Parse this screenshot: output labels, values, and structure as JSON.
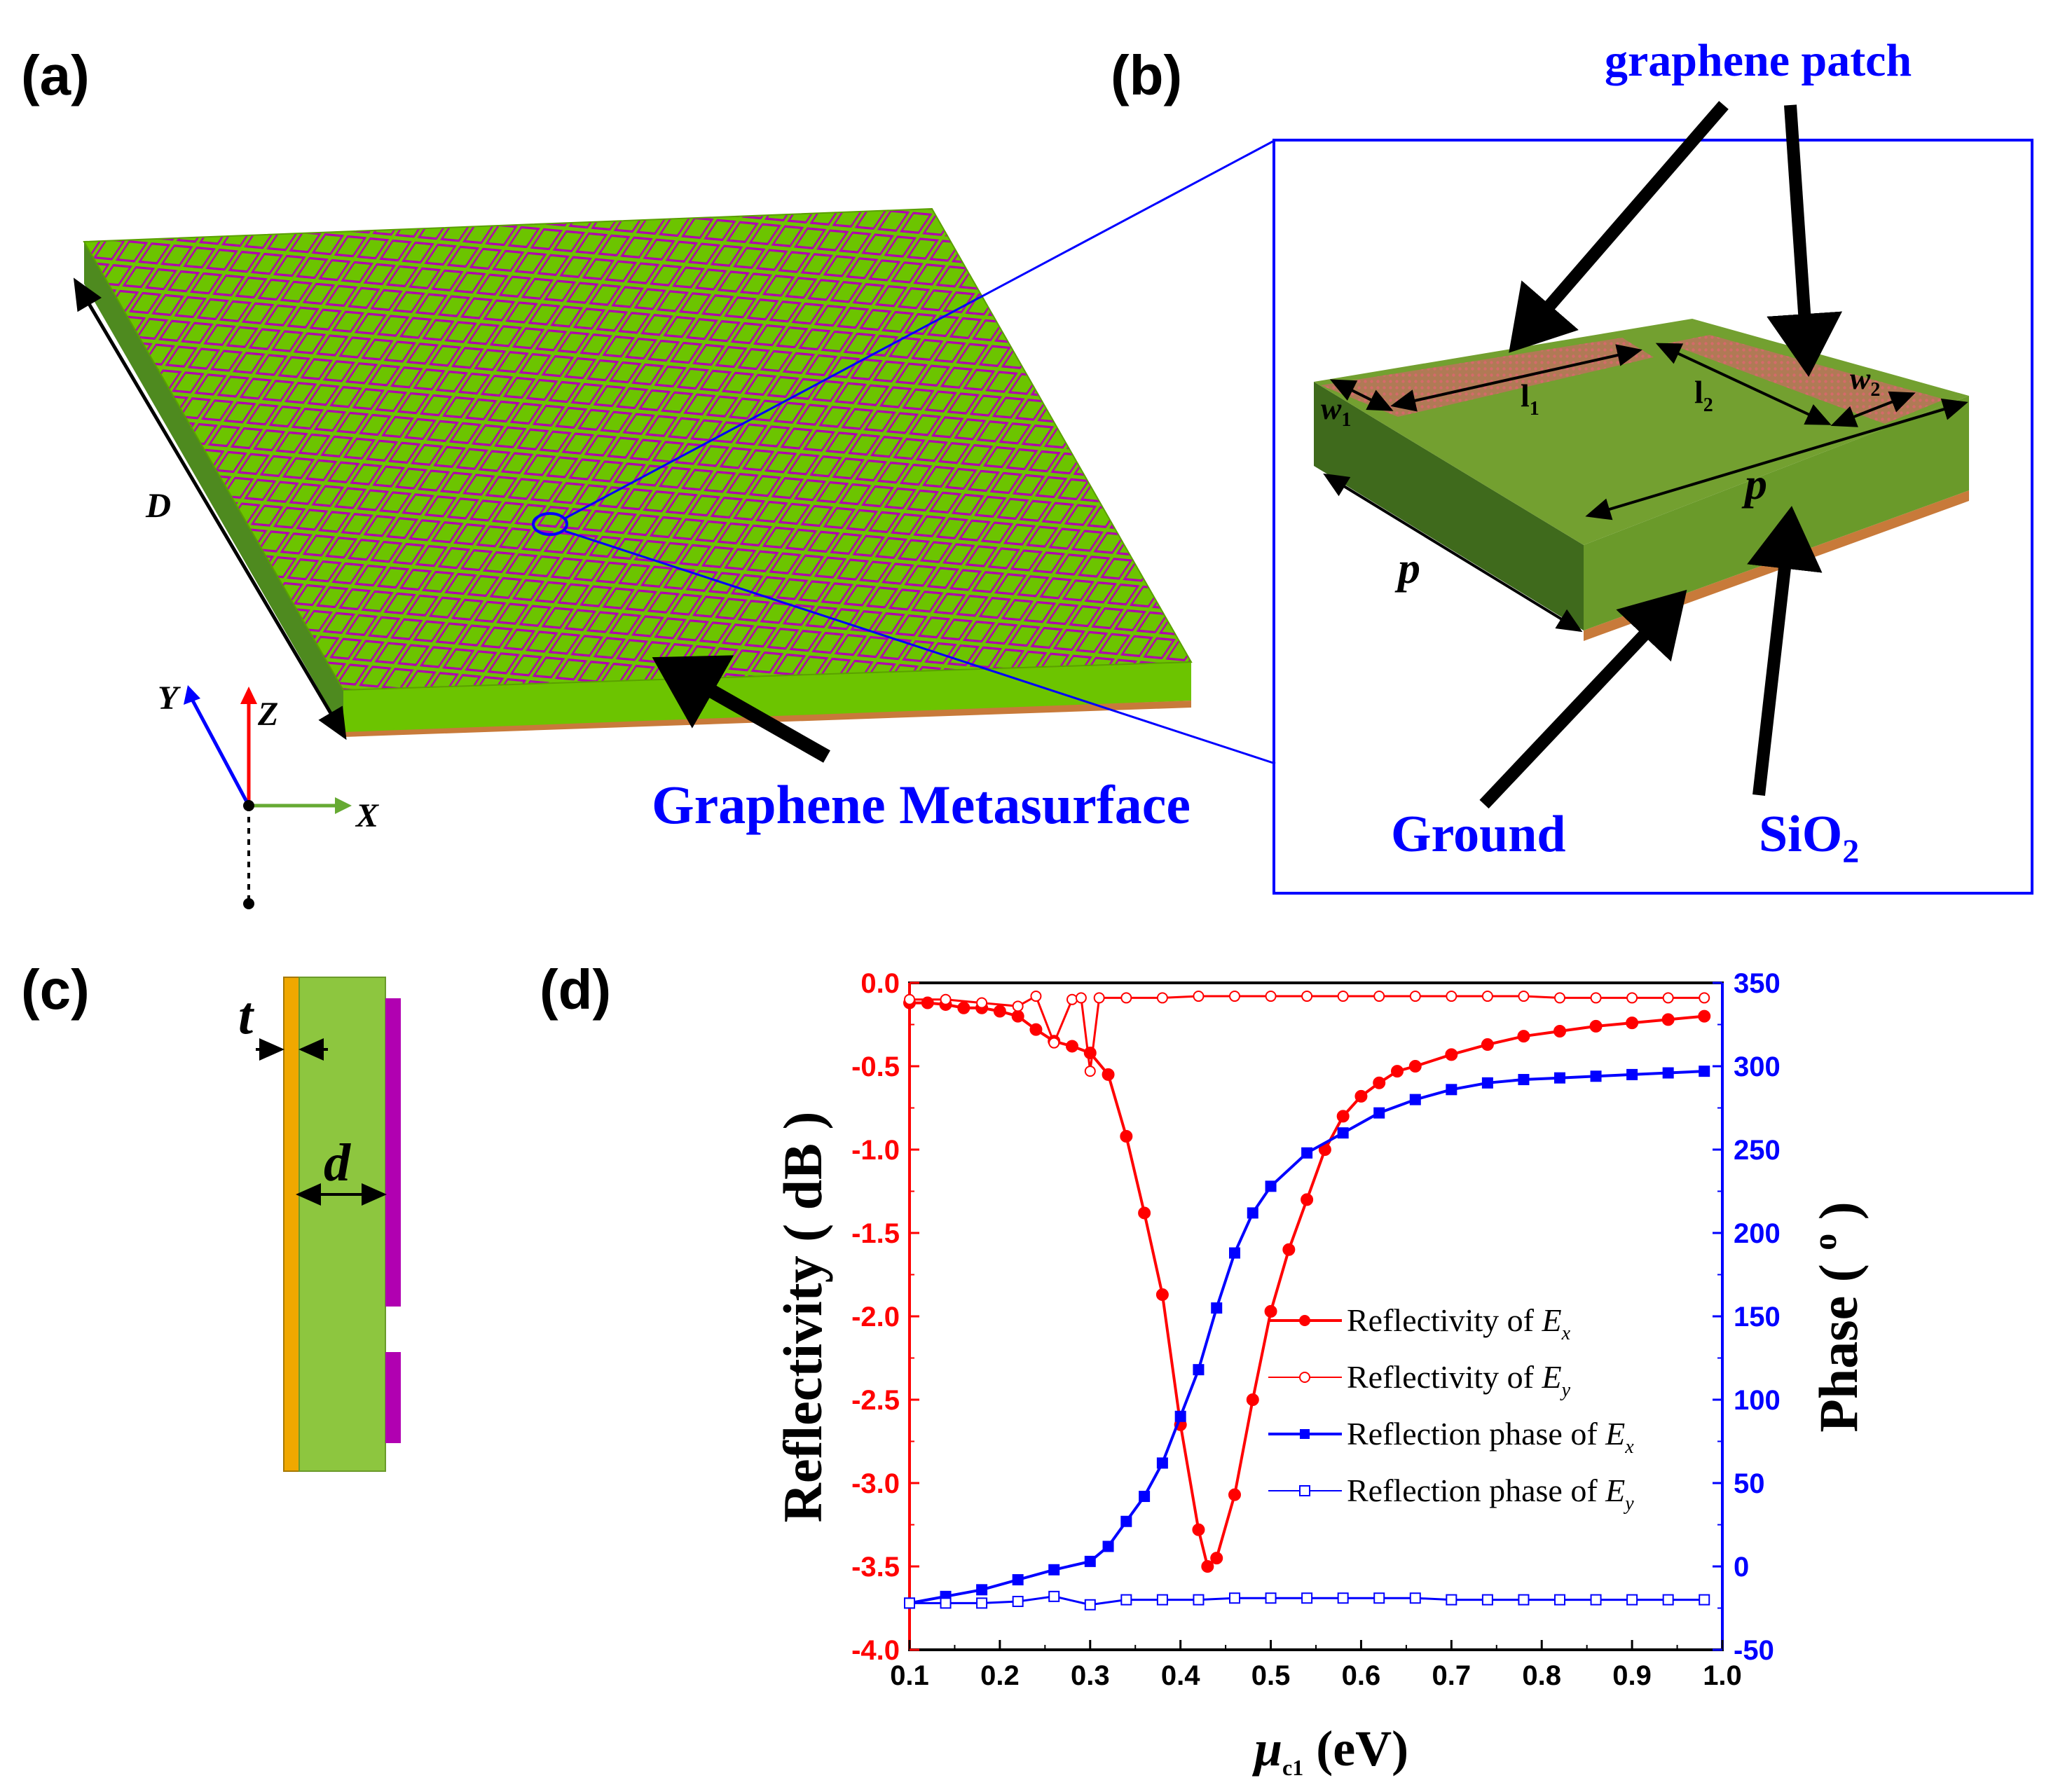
{
  "panels": {
    "a": {
      "label": "(a)",
      "metasurface_label": "Graphene Metasurface",
      "dim_D": "D",
      "axes": {
        "x": "X",
        "y": "Y",
        "z": "Z"
      }
    },
    "b": {
      "label": "(b)",
      "graphene_patch": "graphene patch",
      "ground": "Ground",
      "substrate": "SiO",
      "substrate_sub": "2",
      "dims": {
        "l1": "l",
        "l1_sub": "1",
        "l2": "l",
        "l2_sub": "2",
        "w1": "w",
        "w1_sub": "1",
        "w2": "w",
        "w2_sub": "2",
        "p": "p"
      }
    },
    "c": {
      "label": "(c)",
      "t": "t",
      "d": "d"
    },
    "d": {
      "label": "(d)"
    }
  },
  "colors": {
    "substrate_green": "#6cc400",
    "substrate_dark": "#4e8a1f",
    "ground_copper": "#c87a3a",
    "patch_magenta": "#b100b1",
    "annotation_blue": "#0000ff",
    "reflectivity_red": "#ff0000",
    "phase_blue": "#0000ff"
  },
  "chart_data": {
    "type": "line",
    "xlabel": "μ",
    "xlabel_sub": "c1",
    "xlabel_unit": " (eV)",
    "ylabel_left": "Reflectivity ( dB )",
    "ylabel_right": "Phase ( ° )",
    "ylabel_right_main": "Phase ( ",
    "ylabel_right_sup": "o",
    "ylabel_right_end": " )",
    "xlim": [
      0.1,
      1.0
    ],
    "ylim_left": [
      -4.0,
      0.0
    ],
    "ylim_right": [
      -50,
      350
    ],
    "x_ticks": [
      "0.1",
      "0.2",
      "0.3",
      "0.4",
      "0.5",
      "0.6",
      "0.7",
      "0.8",
      "0.9",
      "1.0"
    ],
    "y_left_ticks": [
      "0.0",
      "-0.5",
      "-1.0",
      "-1.5",
      "-2.0",
      "-2.5",
      "-3.0",
      "-3.5",
      "-4.0"
    ],
    "y_right_ticks": [
      "350",
      "300",
      "250",
      "200",
      "150",
      "100",
      "50",
      "0",
      "-50"
    ],
    "legend": [
      {
        "text": "Reflectivity  of  ",
        "var": "E",
        "sub": "x"
      },
      {
        "text": "Reflectivity  of  ",
        "var": "E",
        "sub": "y"
      },
      {
        "text": "Reflection  phase  of  ",
        "var": "E",
        "sub": "x"
      },
      {
        "text": "Reflection  phase  of  ",
        "var": "E",
        "sub": "y"
      }
    ],
    "series": [
      {
        "name": "Reflectivity of Ex",
        "axis": "left",
        "color": "#ff0000",
        "marker": "filled-circle",
        "x": [
          0.1,
          0.12,
          0.14,
          0.16,
          0.18,
          0.2,
          0.22,
          0.24,
          0.26,
          0.28,
          0.3,
          0.32,
          0.34,
          0.36,
          0.38,
          0.4,
          0.42,
          0.43,
          0.44,
          0.46,
          0.48,
          0.5,
          0.52,
          0.54,
          0.56,
          0.58,
          0.6,
          0.62,
          0.64,
          0.66,
          0.7,
          0.74,
          0.78,
          0.82,
          0.86,
          0.9,
          0.94,
          0.98
        ],
        "y": [
          -0.12,
          -0.12,
          -0.13,
          -0.15,
          -0.15,
          -0.17,
          -0.2,
          -0.28,
          -0.35,
          -0.38,
          -0.42,
          -0.55,
          -0.92,
          -1.38,
          -1.87,
          -2.65,
          -3.28,
          -3.5,
          -3.45,
          -3.07,
          -2.5,
          -1.97,
          -1.6,
          -1.3,
          -1.0,
          -0.8,
          -0.68,
          -0.6,
          -0.53,
          -0.5,
          -0.43,
          -0.37,
          -0.32,
          -0.29,
          -0.26,
          -0.24,
          -0.22,
          -0.2
        ]
      },
      {
        "name": "Reflectivity of Ey",
        "axis": "left",
        "color": "#ff0000",
        "marker": "open-circle",
        "x": [
          0.1,
          0.14,
          0.18,
          0.22,
          0.24,
          0.26,
          0.28,
          0.29,
          0.3,
          0.31,
          0.34,
          0.38,
          0.42,
          0.46,
          0.5,
          0.54,
          0.58,
          0.62,
          0.66,
          0.7,
          0.74,
          0.78,
          0.82,
          0.86,
          0.9,
          0.94,
          0.98
        ],
        "y": [
          -0.1,
          -0.1,
          -0.12,
          -0.14,
          -0.08,
          -0.36,
          -0.1,
          -0.09,
          -0.53,
          -0.09,
          -0.09,
          -0.09,
          -0.08,
          -0.08,
          -0.08,
          -0.08,
          -0.08,
          -0.08,
          -0.08,
          -0.08,
          -0.08,
          -0.08,
          -0.09,
          -0.09,
          -0.09,
          -0.09,
          -0.09
        ]
      },
      {
        "name": "Reflection phase of Ex",
        "axis": "right",
        "color": "#0000ff",
        "marker": "filled-square",
        "x": [
          0.1,
          0.14,
          0.18,
          0.22,
          0.26,
          0.3,
          0.32,
          0.34,
          0.36,
          0.38,
          0.4,
          0.42,
          0.44,
          0.46,
          0.48,
          0.5,
          0.54,
          0.58,
          0.62,
          0.66,
          0.7,
          0.74,
          0.78,
          0.82,
          0.86,
          0.9,
          0.94,
          0.98
        ],
        "y": [
          -22,
          -18,
          -14,
          -8,
          -2,
          3,
          12,
          27,
          42,
          62,
          90,
          118,
          155,
          188,
          212,
          228,
          248,
          260,
          272,
          280,
          286,
          290,
          292,
          293,
          294,
          295,
          296,
          297
        ]
      },
      {
        "name": "Reflection phase of Ey",
        "axis": "right",
        "color": "#0000ff",
        "marker": "open-square",
        "x": [
          0.1,
          0.14,
          0.18,
          0.22,
          0.26,
          0.3,
          0.34,
          0.38,
          0.42,
          0.46,
          0.5,
          0.54,
          0.58,
          0.62,
          0.66,
          0.7,
          0.74,
          0.78,
          0.82,
          0.86,
          0.9,
          0.94,
          0.98
        ],
        "y": [
          -22,
          -22,
          -22,
          -21,
          -18,
          -23,
          -20,
          -20,
          -20,
          -19,
          -19,
          -19,
          -19,
          -19,
          -19,
          -20,
          -20,
          -20,
          -20,
          -20,
          -20,
          -20,
          -20
        ]
      }
    ]
  }
}
